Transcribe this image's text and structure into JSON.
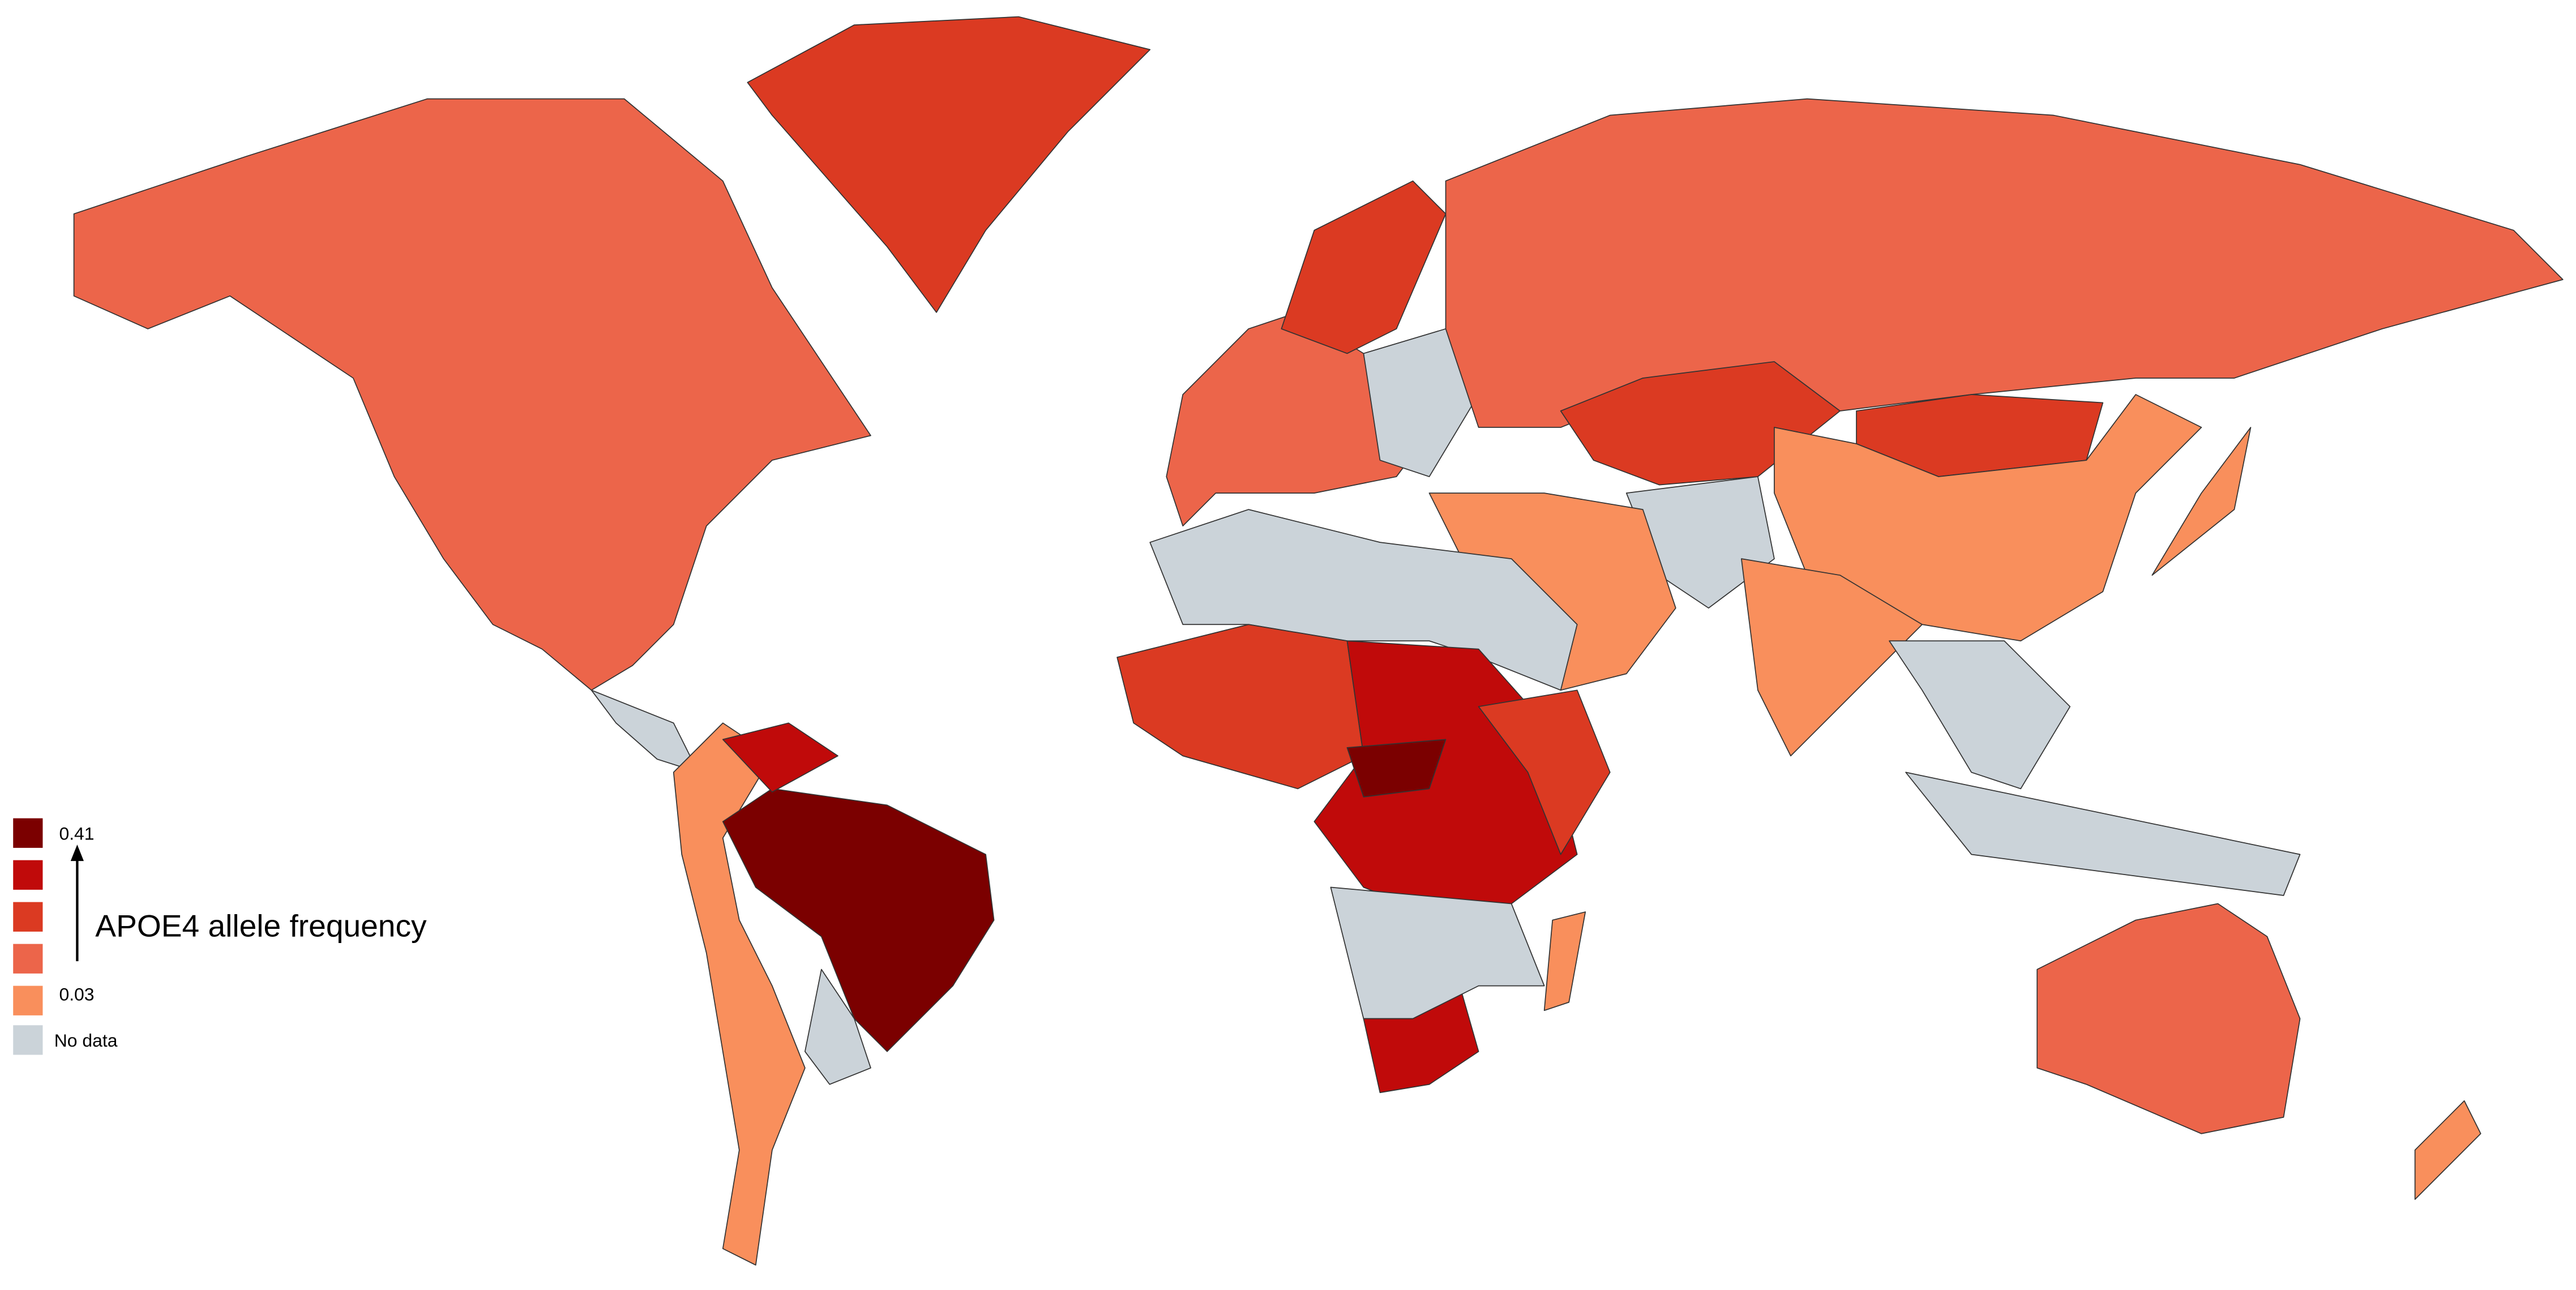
{
  "legend": {
    "max_label": "0.41",
    "min_label": "0.03",
    "title": "APOE4 allele frequency",
    "no_data": "No data",
    "colors": [
      "#7b0000",
      "#c00a0a",
      "#db3a22",
      "#ec654a",
      "#f98f5c"
    ],
    "no_data_color": "#cbd3d9"
  }
}
